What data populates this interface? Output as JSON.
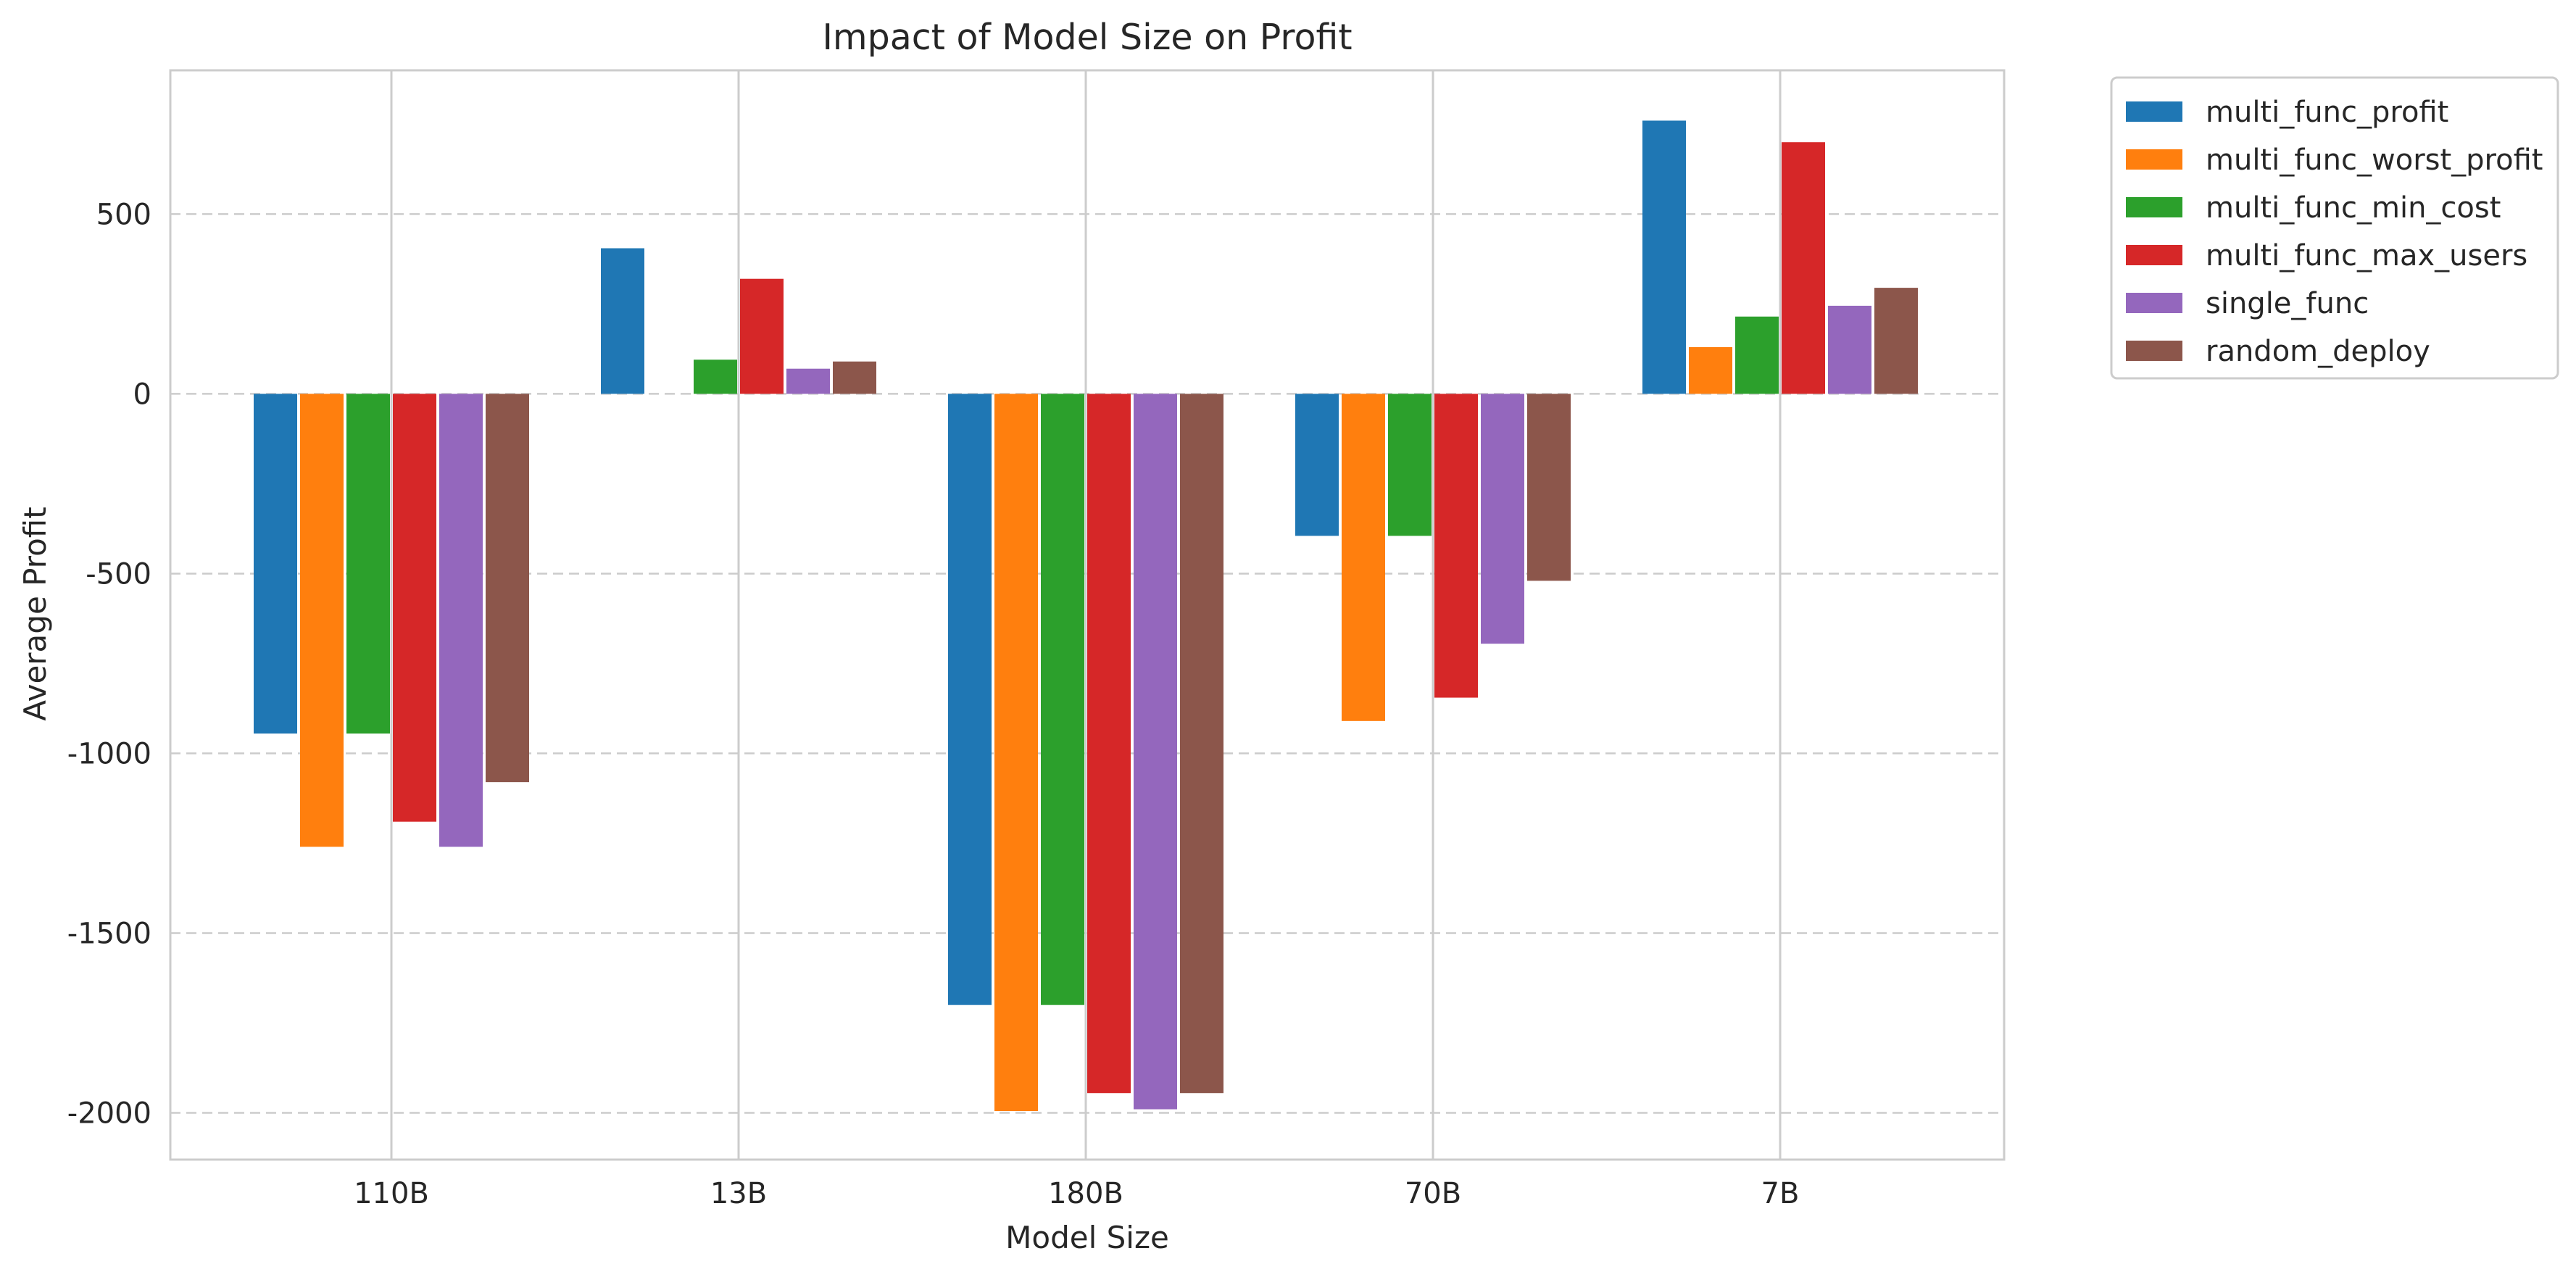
{
  "chart_data": {
    "type": "bar",
    "title": "Impact of Model Size on Profit",
    "xlabel": "Model Size",
    "ylabel": "Average Profit",
    "categories": [
      "110B",
      "13B",
      "180B",
      "70B",
      "7B"
    ],
    "ylim": [
      -2130,
      900
    ],
    "yticks": [
      500,
      0,
      -500,
      -1000,
      -1500,
      -2000
    ],
    "ytick_labels": [
      "500",
      "0",
      "-500",
      "-1000",
      "-1500",
      "-2000"
    ],
    "grid": "y dashed, x solid",
    "legend_position": "outside top-right",
    "series": [
      {
        "name": "multi_func_profit",
        "color": "#1f77b4",
        "values": [
          -945,
          405,
          -1700,
          -395,
          760
        ]
      },
      {
        "name": "multi_func_worst_profit",
        "color": "#ff7f0e",
        "values": [
          -1260,
          0,
          -1995,
          -910,
          130
        ]
      },
      {
        "name": "multi_func_min_cost",
        "color": "#2ca02c",
        "values": [
          -945,
          95,
          -1700,
          -395,
          215
        ]
      },
      {
        "name": "multi_func_max_users",
        "color": "#d62728",
        "values": [
          -1190,
          320,
          -1945,
          -845,
          700
        ]
      },
      {
        "name": "single_func",
        "color": "#9467bd",
        "values": [
          -1260,
          70,
          -1990,
          -695,
          245
        ]
      },
      {
        "name": "random_deploy",
        "color": "#8c564b",
        "values": [
          -1080,
          90,
          -1945,
          -520,
          295
        ]
      }
    ]
  }
}
